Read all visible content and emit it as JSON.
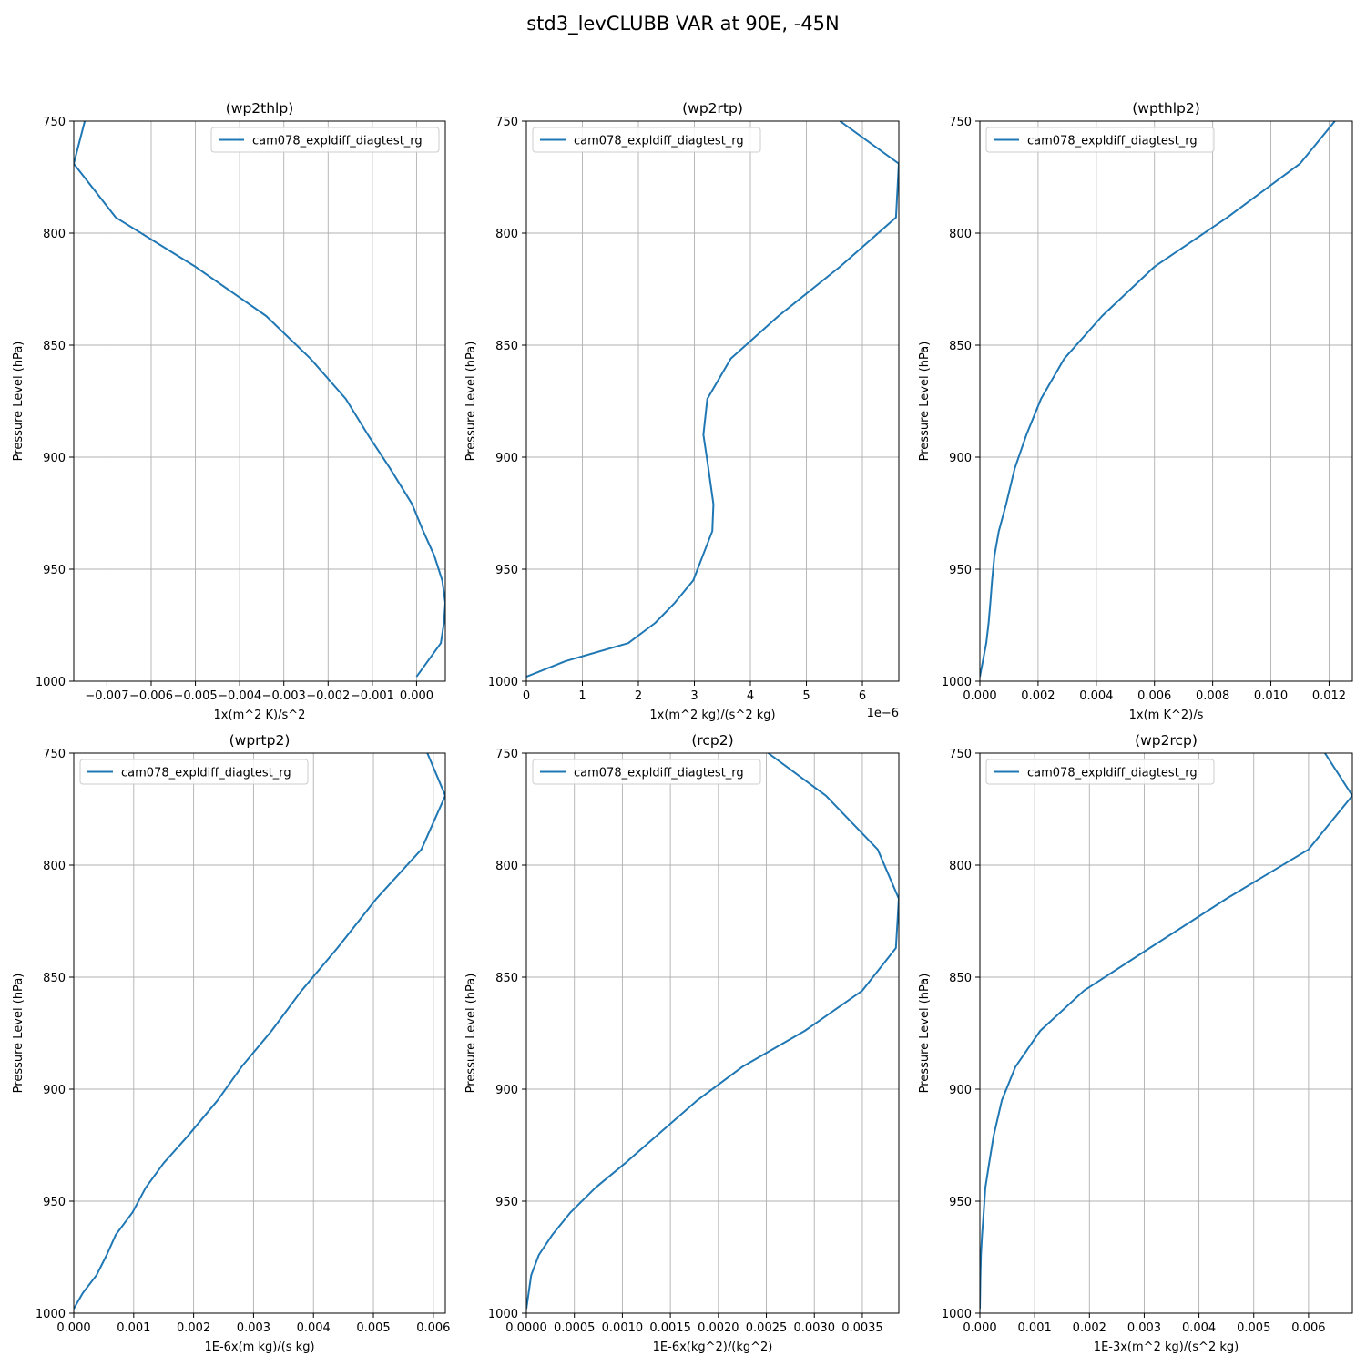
{
  "figure_title": "std3_levCLUBB VAR at 90E, -45N",
  "colors": {
    "line": "#1f77b4",
    "grid": "#b0b0b0",
    "axis": "#000000"
  },
  "chart_data": [
    {
      "type": "line",
      "title": "(wp2thlp)",
      "xlabel": "1x(m^2 K)/s^2",
      "ylabel": "Pressure Level (hPa)",
      "xlim": [
        -0.00775,
        0.00065
      ],
      "ylim": [
        1000,
        750
      ],
      "xticks": [
        -0.007,
        -0.006,
        -0.005,
        -0.004,
        -0.003,
        -0.002,
        -0.001,
        0.0
      ],
      "xtick_labels": [
        "−0.007",
        "−0.006",
        "−0.005",
        "−0.004",
        "−0.003",
        "−0.002",
        "−0.001",
        "0.000"
      ],
      "yticks": [
        750,
        800,
        850,
        900,
        950,
        1000
      ],
      "ytick_labels": [
        "750",
        "800",
        "850",
        "900",
        "950",
        "1000"
      ],
      "grid": true,
      "legend_position": "upper right",
      "offset_text": "",
      "series": [
        {
          "name": "cam078_expldiff_diagtest_rg",
          "x": [
            -0.0075,
            -0.00775,
            -0.0068,
            -0.005,
            -0.0034,
            -0.0024,
            -0.0016,
            -0.0011,
            -0.0006,
            -0.0001,
            0.00015,
            0.0004,
            0.00058,
            0.00065,
            0.00062,
            0.00055,
            0.0
          ],
          "y": [
            750,
            769,
            793,
            815,
            837,
            856,
            874,
            890,
            905,
            921,
            933,
            944,
            955,
            965,
            974,
            983,
            998
          ]
        }
      ]
    },
    {
      "type": "line",
      "title": "(wp2rtp)",
      "xlabel": "1x(m^2 kg)/(s^2 kg)",
      "ylabel": "Pressure Level (hPa)",
      "xlim": [
        0,
        6.65
      ],
      "ylim": [
        1000,
        750
      ],
      "xticks": [
        0,
        1,
        2,
        3,
        4,
        5,
        6
      ],
      "xtick_labels": [
        "0",
        "1",
        "2",
        "3",
        "4",
        "5",
        "6"
      ],
      "yticks": [
        750,
        800,
        850,
        900,
        950,
        1000
      ],
      "ytick_labels": [
        "750",
        "800",
        "850",
        "900",
        "950",
        "1000"
      ],
      "grid": true,
      "legend_position": "upper left",
      "offset_text": "1e−6",
      "series": [
        {
          "name": "cam078_expldiff_diagtest_rg",
          "x": [
            5.6,
            6.65,
            6.6,
            5.6,
            4.5,
            3.65,
            3.23,
            3.16,
            3.25,
            3.34,
            3.32,
            3.15,
            2.98,
            2.65,
            2.3,
            1.82,
            0.7,
            0.0
          ],
          "y": [
            750,
            769,
            793,
            815,
            837,
            856,
            874,
            890,
            905,
            921,
            933,
            944,
            955,
            965,
            974,
            983,
            991,
            998
          ]
        }
      ]
    },
    {
      "type": "line",
      "title": "(wpthlp2)",
      "xlabel": "1x(m K^2)/s",
      "ylabel": "Pressure Level (hPa)",
      "xlim": [
        0,
        0.0128
      ],
      "ylim": [
        1000,
        750
      ],
      "xticks": [
        0.0,
        0.002,
        0.004,
        0.006,
        0.008,
        0.01,
        0.012
      ],
      "xtick_labels": [
        "0.000",
        "0.002",
        "0.004",
        "0.006",
        "0.008",
        "0.010",
        "0.012"
      ],
      "yticks": [
        750,
        800,
        850,
        900,
        950,
        1000
      ],
      "ytick_labels": [
        "750",
        "800",
        "850",
        "900",
        "950",
        "1000"
      ],
      "grid": true,
      "legend_position": "upper left",
      "offset_text": "",
      "series": [
        {
          "name": "cam078_expldiff_diagtest_rg",
          "x": [
            0.0122,
            0.011,
            0.0085,
            0.006,
            0.0042,
            0.0029,
            0.0021,
            0.0016,
            0.0012,
            0.0009,
            0.00065,
            0.0005,
            0.00042,
            0.00036,
            0.0003,
            0.00022,
            0.0
          ],
          "y": [
            750,
            769,
            793,
            815,
            837,
            856,
            874,
            890,
            905,
            921,
            933,
            944,
            955,
            965,
            974,
            983,
            998
          ]
        }
      ]
    },
    {
      "type": "line",
      "title": "(wprtp2)",
      "xlabel": "1E-6x(m kg)/(s kg)",
      "ylabel": "Pressure Level (hPa)",
      "xlim": [
        0,
        0.0062
      ],
      "ylim": [
        1000,
        750
      ],
      "xticks": [
        0.0,
        0.001,
        0.002,
        0.003,
        0.004,
        0.005,
        0.006
      ],
      "xtick_labels": [
        "0.000",
        "0.001",
        "0.002",
        "0.003",
        "0.004",
        "0.005",
        "0.006"
      ],
      "yticks": [
        750,
        800,
        850,
        900,
        950,
        1000
      ],
      "ytick_labels": [
        "750",
        "800",
        "850",
        "900",
        "950",
        "1000"
      ],
      "grid": true,
      "legend_position": "upper left",
      "offset_text": "",
      "series": [
        {
          "name": "cam078_expldiff_diagtest_rg",
          "x": [
            0.0059,
            0.0062,
            0.0058,
            0.00505,
            0.0044,
            0.0038,
            0.0033,
            0.0028,
            0.0024,
            0.0019,
            0.0015,
            0.0012,
            0.00098,
            0.0007,
            0.00055,
            0.00038,
            0.00015,
            0.0
          ],
          "y": [
            750,
            769,
            793,
            815,
            837,
            856,
            874,
            890,
            905,
            921,
            933,
            944,
            955,
            965,
            974,
            983,
            991,
            998
          ]
        }
      ]
    },
    {
      "type": "line",
      "title": "(rcp2)",
      "xlabel": "1E-6x(kg^2)/(kg^2)",
      "ylabel": "Pressure Level (hPa)",
      "xlim": [
        0,
        0.00388
      ],
      "ylim": [
        1000,
        750
      ],
      "xticks": [
        0.0,
        0.0005,
        0.001,
        0.0015,
        0.002,
        0.0025,
        0.003,
        0.0035
      ],
      "xtick_labels": [
        "0.0000",
        "0.0005",
        "0.0010",
        "0.0015",
        "0.0020",
        "0.0025",
        "0.0030",
        "0.0035"
      ],
      "yticks": [
        750,
        800,
        850,
        900,
        950,
        1000
      ],
      "ytick_labels": [
        "750",
        "800",
        "850",
        "900",
        "950",
        "1000"
      ],
      "grid": true,
      "legend_position": "upper left",
      "offset_text": "",
      "series": [
        {
          "name": "cam078_expldiff_diagtest_rg",
          "x": [
            0.00252,
            0.00312,
            0.00366,
            0.00388,
            0.00385,
            0.0035,
            0.0029,
            0.00225,
            0.00178,
            0.00135,
            0.00103,
            0.00072,
            0.00046,
            0.00027,
            0.00013,
            5e-05,
            0.0
          ],
          "y": [
            750,
            769,
            793,
            815,
            837,
            856,
            874,
            890,
            905,
            921,
            933,
            944,
            955,
            965,
            974,
            983,
            998
          ]
        }
      ]
    },
    {
      "type": "line",
      "title": "(wp2rcp)",
      "xlabel": "1E-3x(m^2 kg)/(s^2 kg)",
      "ylabel": "Pressure Level (hPa)",
      "xlim": [
        0,
        0.0068
      ],
      "ylim": [
        1000,
        750
      ],
      "xticks": [
        0.0,
        0.001,
        0.002,
        0.003,
        0.004,
        0.005,
        0.006
      ],
      "xtick_labels": [
        "0.000",
        "0.001",
        "0.002",
        "0.003",
        "0.004",
        "0.005",
        "0.006"
      ],
      "yticks": [
        750,
        800,
        850,
        900,
        950,
        1000
      ],
      "ytick_labels": [
        "750",
        "800",
        "850",
        "900",
        "950",
        "1000"
      ],
      "grid": true,
      "legend_position": "upper left",
      "offset_text": "",
      "series": [
        {
          "name": "cam078_expldiff_diagtest_rg",
          "x": [
            0.0063,
            0.0068,
            0.006,
            0.0045,
            0.0031,
            0.0019,
            0.0011,
            0.00065,
            0.0004,
            0.00025,
            0.00017,
            0.0001,
            7e-05,
            4e-05,
            2e-05,
            1e-05,
            0.0
          ],
          "y": [
            750,
            769,
            793,
            815,
            837,
            856,
            874,
            890,
            905,
            921,
            933,
            944,
            955,
            965,
            974,
            983,
            998
          ]
        }
      ]
    }
  ]
}
